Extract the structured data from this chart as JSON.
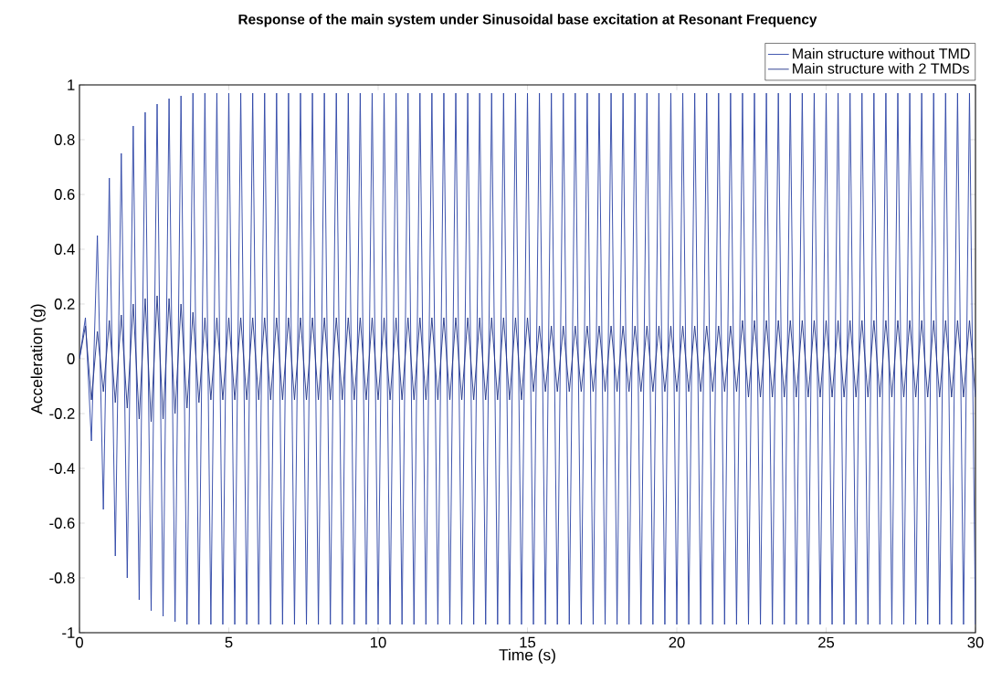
{
  "chart_data": {
    "type": "line",
    "title": "Response of the main system under Sinusoidal base excitation at Resonant Frequency",
    "xlabel": "Time (s)",
    "ylabel": "Acceleration (g)",
    "xlim": [
      0,
      30
    ],
    "ylim": [
      -1,
      1
    ],
    "xticks": [
      0,
      5,
      10,
      15,
      20,
      25,
      30
    ],
    "yticks": [
      -1,
      -0.8,
      -0.6,
      -0.4,
      -0.2,
      0,
      0.2,
      0.4,
      0.6,
      0.8,
      1
    ],
    "legend": "top right",
    "grid": false,
    "marker": "none",
    "line_style": "solid",
    "x": [
      0,
      0.2,
      0.4,
      0.6,
      0.8,
      1,
      1.2,
      1.4,
      1.6,
      1.8,
      2,
      2.2,
      2.4,
      2.6,
      2.8,
      3,
      3.2,
      3.4,
      3.6,
      3.8,
      4,
      4.2,
      4.4,
      4.6,
      4.8,
      5,
      5.2,
      5.4,
      5.6,
      5.8,
      6,
      6.2,
      6.4,
      6.6,
      6.8,
      7,
      7.2,
      7.4,
      7.6,
      7.8,
      8,
      8.2,
      8.4,
      8.6,
      8.8,
      9,
      9.2,
      9.4,
      9.6,
      9.8,
      10,
      10.2,
      10.4,
      10.6,
      10.8,
      11,
      11.2,
      11.4,
      11.6,
      11.8,
      12,
      12.2,
      12.4,
      12.6,
      12.8,
      13,
      13.2,
      13.4,
      13.6,
      13.8,
      14,
      14.2,
      14.4,
      14.6,
      14.8,
      15,
      15.2,
      15.4,
      15.6,
      15.8,
      16,
      16.2,
      16.4,
      16.6,
      16.8,
      17,
      17.2,
      17.4,
      17.6,
      17.8,
      18,
      18.2,
      18.4,
      18.6,
      18.8,
      19,
      19.2,
      19.4,
      19.6,
      19.8,
      20,
      20.2,
      20.4,
      20.6,
      20.8,
      21,
      21.2,
      21.4,
      21.6,
      21.8,
      22,
      22.2,
      22.4,
      22.6,
      22.8,
      23,
      23.2,
      23.4,
      23.6,
      23.8,
      24,
      24.2,
      24.4,
      24.6,
      24.8,
      25,
      25.2,
      25.4,
      25.6,
      25.8,
      26,
      26.2,
      26.4,
      26.6,
      26.8,
      27,
      27.2,
      27.4,
      27.6,
      27.8,
      28,
      28.2,
      28.4,
      28.6,
      28.8,
      29,
      29.2,
      29.4,
      29.6,
      29.8,
      30
    ],
    "series": [
      {
        "name": "Main structure without TMD",
        "color": "#3048a8",
        "values": [
          0,
          0.15,
          -0.3,
          0.45,
          -0.55,
          0.66,
          -0.72,
          0.75,
          -0.8,
          0.85,
          -0.88,
          0.9,
          -0.92,
          0.93,
          -0.94,
          0.95,
          -0.96,
          0.96,
          -0.97,
          0.97,
          -0.97,
          0.97,
          -0.97,
          0.97,
          -0.97,
          0.97,
          -0.97,
          0.97,
          -0.97,
          0.97,
          -0.97,
          0.97,
          -0.97,
          0.97,
          -0.97,
          0.97,
          -0.97,
          0.97,
          -0.97,
          0.97,
          -0.97,
          0.97,
          -0.97,
          0.97,
          -0.97,
          0.97,
          -0.97,
          0.97,
          -0.97,
          0.97,
          -0.97,
          0.97,
          -0.97,
          0.97,
          -0.97,
          0.97,
          -0.97,
          0.97,
          -0.97,
          0.97,
          -0.97,
          0.97,
          -0.97,
          0.97,
          -0.97,
          0.97,
          -0.97,
          0.97,
          -0.97,
          0.97,
          -0.97,
          0.97,
          -0.97,
          0.97,
          -0.97,
          0.97,
          -0.97,
          0.97,
          -0.97,
          0.97,
          -0.97,
          0.97,
          -0.97,
          0.97,
          -0.97,
          0.97,
          -0.97,
          0.97,
          -0.97,
          0.97,
          -0.97,
          0.97,
          -0.97,
          0.97,
          -0.97,
          0.97,
          -0.97,
          0.97,
          -0.97,
          0.97,
          -0.97,
          0.97,
          -0.97,
          0.97,
          -0.97,
          0.97,
          -0.97,
          0.97,
          -0.97,
          0.97,
          -0.97,
          0.97,
          -0.97,
          0.97,
          -0.97,
          0.97,
          -0.97,
          0.97,
          -0.97,
          0.97,
          -0.97,
          0.97,
          -0.97,
          0.97,
          -0.97,
          0.97,
          -0.97,
          0.97,
          -0.97,
          0.97,
          -0.97,
          0.97,
          -0.97,
          0.97,
          -0.97,
          0.97,
          -0.97,
          0.97,
          -0.97,
          0.97,
          -0.97,
          0.97,
          -0.97,
          0.97,
          -0.97,
          0.97,
          -0.97,
          0.97,
          -0.97,
          0.97,
          -0.97
        ]
      },
      {
        "name": "Main structure with 2 TMDs",
        "color": "#24378a",
        "values": [
          0,
          0.12,
          -0.15,
          0.1,
          -0.12,
          0.14,
          -0.16,
          0.16,
          -0.18,
          0.2,
          -0.22,
          0.22,
          -0.23,
          0.23,
          -0.22,
          0.22,
          -0.2,
          0.2,
          -0.18,
          0.17,
          -0.16,
          0.15,
          -0.15,
          0.15,
          -0.15,
          0.15,
          -0.15,
          0.15,
          -0.15,
          0.15,
          -0.15,
          0.15,
          -0.15,
          0.15,
          -0.15,
          0.15,
          -0.15,
          0.15,
          -0.15,
          0.15,
          -0.15,
          0.15,
          -0.15,
          0.15,
          -0.15,
          0.15,
          -0.15,
          0.15,
          -0.15,
          0.15,
          -0.15,
          0.15,
          -0.15,
          0.15,
          -0.15,
          0.15,
          -0.15,
          0.15,
          -0.15,
          0.15,
          -0.15,
          0.15,
          -0.15,
          0.15,
          -0.15,
          0.15,
          -0.15,
          0.15,
          -0.15,
          0.15,
          -0.15,
          0.15,
          -0.15,
          0.15,
          -0.15,
          0.15,
          -0.12,
          0.12,
          -0.12,
          0.12,
          -0.12,
          0.12,
          -0.12,
          0.12,
          -0.12,
          0.12,
          -0.12,
          0.12,
          -0.12,
          0.12,
          -0.12,
          0.12,
          -0.12,
          0.12,
          -0.12,
          0.12,
          -0.12,
          0.12,
          -0.12,
          0.12,
          -0.12,
          0.12,
          -0.12,
          0.12,
          -0.12,
          0.12,
          -0.12,
          0.12,
          -0.12,
          0.12,
          -0.12,
          0.14,
          -0.14,
          0.14,
          -0.14,
          0.14,
          -0.14,
          0.14,
          -0.14,
          0.14,
          -0.14,
          0.14,
          -0.14,
          0.14,
          -0.14,
          0.14,
          -0.14,
          0.14,
          -0.14,
          0.14,
          -0.14,
          0.14,
          -0.14,
          0.14,
          -0.14,
          0.14,
          -0.14,
          0.14,
          -0.14,
          0.14,
          -0.14,
          0.14,
          -0.14,
          0.14,
          -0.14,
          0.14,
          -0.14,
          0.14,
          -0.14,
          0.14,
          -0.14
        ]
      }
    ]
  }
}
